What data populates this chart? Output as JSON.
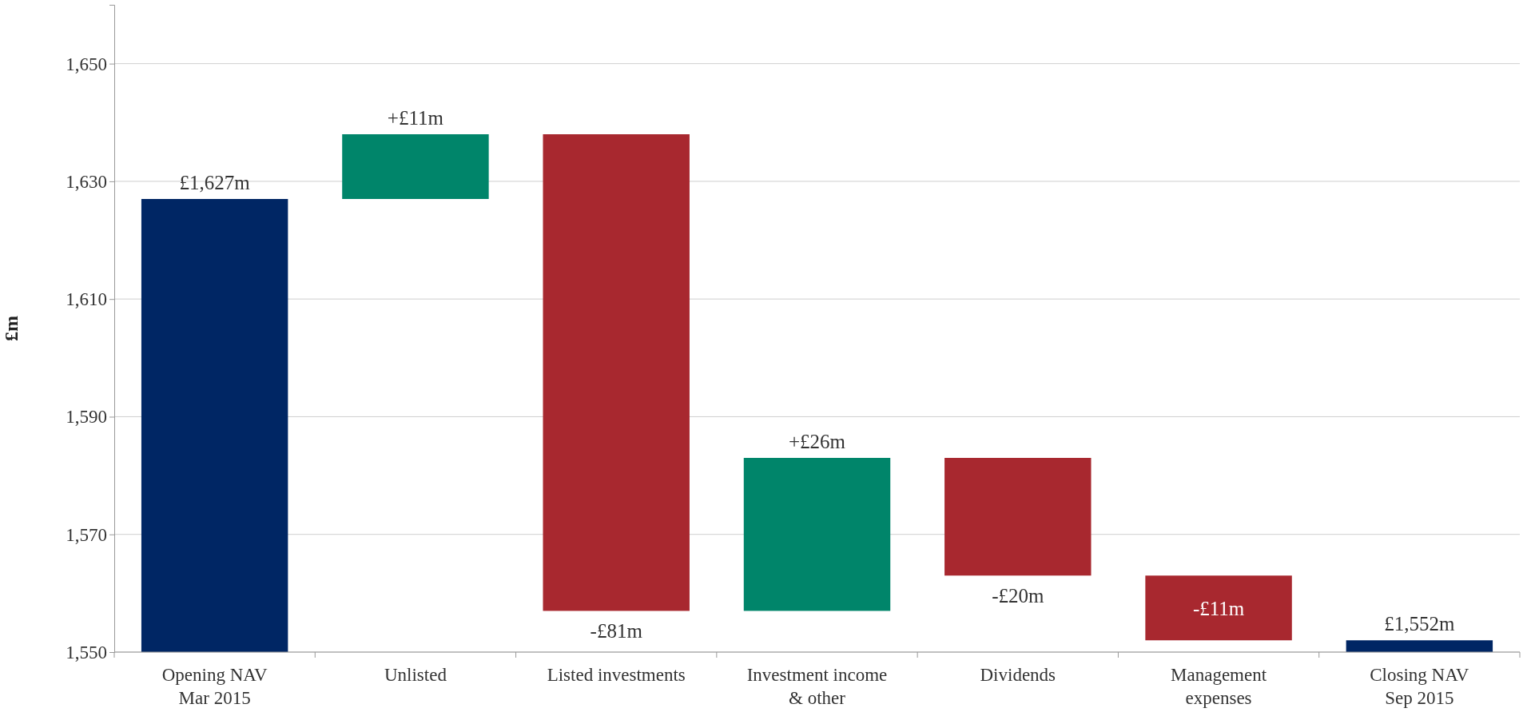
{
  "chart_data": {
    "type": "bar",
    "ylabel": "£m",
    "categories": [
      "Opening NAV\nMar 2015",
      "Unlisted",
      "Listed investments",
      "Investment income\n& other",
      "Dividends",
      "Management\nexpenses",
      "Closing NAV\nSep 2015"
    ],
    "values": [
      1627,
      11,
      -81,
      26,
      -20,
      -11,
      1552
    ],
    "base": [
      null,
      1627,
      1638,
      1557,
      1583,
      1563,
      null
    ],
    "colors": [
      "#002664",
      "#00856a",
      "#a8282f",
      "#00856a",
      "#a8282f",
      "#a8282f",
      "#002664"
    ],
    "value_labels": [
      "£1,627m",
      "+£11m",
      "-£81m",
      "+£26m",
      "-£20m",
      "-£11m",
      "£1,552m"
    ],
    "ylim": [
      1550,
      1660
    ],
    "yticks": [
      {
        "value": 1550,
        "label": "1,550"
      },
      {
        "value": 1570,
        "label": "1,570"
      },
      {
        "value": 1590,
        "label": "1,590"
      },
      {
        "value": 1610,
        "label": "1,610"
      },
      {
        "value": 1630,
        "label": "1,630"
      },
      {
        "value": 1650,
        "label": "1,650"
      }
    ],
    "grid": "y"
  }
}
